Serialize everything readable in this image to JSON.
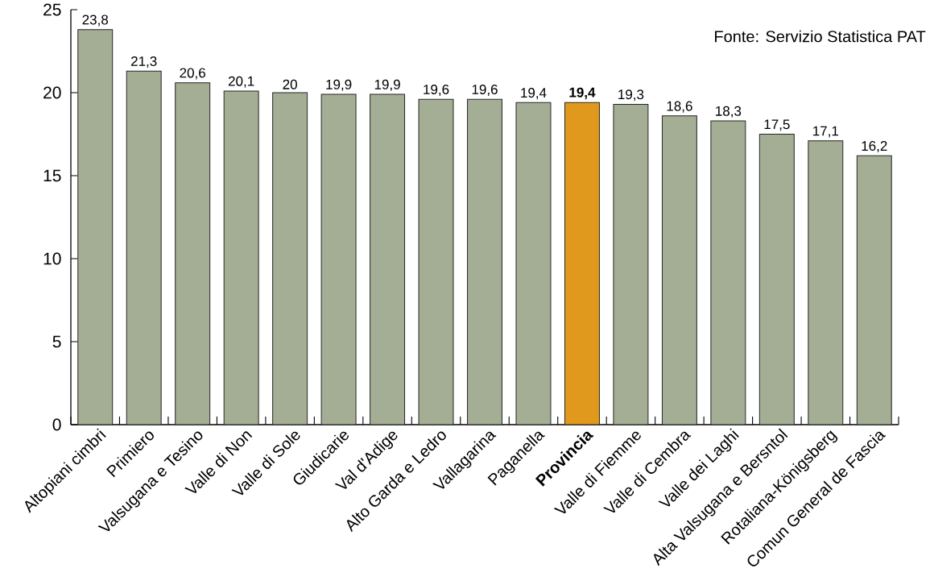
{
  "chart_data": {
    "type": "bar",
    "categories": [
      "Altopiani cimbri",
      "Primiero",
      "Valsugana e Tesino",
      "Valle di Non",
      "Valle di Sole",
      "Giudicarie",
      "Val d'Adige",
      "Alto Garda e Ledro",
      "Vallagarina",
      "Paganella",
      "**Provincia**",
      "Valle di Fiemme",
      "Valle di Cembra",
      "Valle dei Laghi",
      "Alta Valsugana e Bersntol",
      "Rotaliana-Königsberg",
      "Comun General de Fascia"
    ],
    "values": [
      23.8,
      21.3,
      20.6,
      20.1,
      20,
      19.9,
      19.9,
      19.6,
      19.6,
      19.4,
      19.4,
      19.3,
      18.6,
      18.3,
      17.5,
      17.1,
      16.2
    ],
    "colors": [
      "#a3ae94",
      "#a3ae94",
      "#a3ae94",
      "#a3ae94",
      "#a3ae94",
      "#a3ae94",
      "#a3ae94",
      "#a3ae94",
      "#a3ae94",
      "#a3ae94",
      "#e0991c",
      "#a3ae94",
      "#a3ae94",
      "#a3ae94",
      "#a3ae94",
      "#a3ae94",
      "#a3ae94"
    ],
    "value_labels": [
      "23,8",
      "21,3",
      "20,6",
      "20,1",
      "20",
      "19,9",
      "19,9",
      "19,6",
      "19,6",
      "19,4",
      "**19,4**",
      "19,3",
      "18,6",
      "18,3",
      "17,5",
      "17,1",
      "16,2"
    ],
    "ylim": [
      0,
      25
    ],
    "yticks": [
      0,
      5,
      10,
      15,
      20,
      25
    ],
    "annotations": [
      "Fonte: Servizio Statistica PAT"
    ]
  }
}
